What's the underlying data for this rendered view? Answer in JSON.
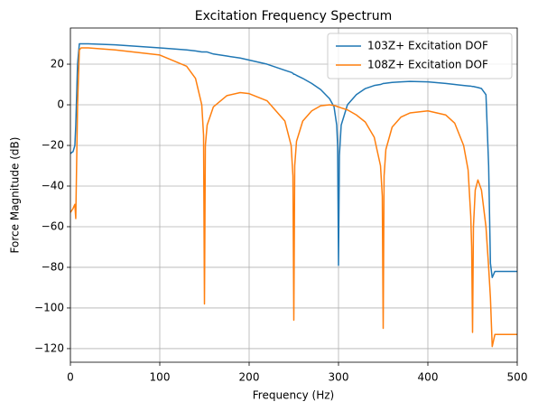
{
  "chart_data": {
    "type": "line",
    "title": "Excitation Frequency Spectrum",
    "x_label": "Frequency (Hz)",
    "y_label": "Force Magnitude (dB)",
    "x": [
      0,
      3,
      5,
      6,
      8,
      10,
      12,
      20,
      50,
      100,
      130,
      140,
      147,
      149,
      150,
      151,
      153,
      160,
      175,
      190,
      200,
      220,
      240,
      247,
      249,
      250,
      251,
      253,
      260,
      270,
      280,
      290,
      295,
      298,
      299,
      300,
      301,
      303,
      310,
      320,
      330,
      340,
      347,
      349,
      350,
      351,
      353,
      360,
      370,
      380,
      400,
      420,
      430,
      440,
      445,
      448,
      449,
      450,
      451,
      453,
      456,
      460,
      465,
      468,
      470,
      472,
      475,
      480,
      500
    ],
    "series": [
      {
        "name": "103Z+ Excitation DOF",
        "color": "#1f77b4",
        "values": [
          -24,
          -23,
          -20,
          -10,
          20,
          30,
          30,
          30,
          29.5,
          28,
          27,
          26.5,
          26,
          26,
          26,
          26,
          26,
          25,
          24,
          23,
          22,
          20,
          17,
          16,
          15.5,
          15,
          15,
          14.5,
          13,
          10.5,
          7.5,
          3,
          -1,
          -10,
          -20,
          -79,
          -25,
          -10,
          0,
          5,
          8,
          9.5,
          10,
          10.3,
          10.5,
          10.5,
          10.6,
          11,
          11.3,
          11.5,
          11.3,
          10.5,
          10,
          9.5,
          9.3,
          9.2,
          9.1,
          9,
          9,
          8.8,
          8.5,
          8,
          5,
          -30,
          -78,
          -85,
          -82,
          -82,
          -82
        ]
      },
      {
        "name": "108Z+ Excitation DOF",
        "color": "#ff7f0e",
        "values": [
          -53,
          -51,
          -49,
          -56,
          0,
          27,
          28,
          28,
          27,
          24.5,
          19,
          13,
          0,
          -15,
          -98,
          -20,
          -10,
          -1,
          4.5,
          6,
          5.5,
          2,
          -8,
          -20,
          -35,
          -106,
          -30,
          -18,
          -8,
          -3,
          -0.5,
          0,
          -0.3,
          -0.7,
          -1,
          -1,
          -1.2,
          -1.5,
          -2.5,
          -5,
          -8.5,
          -16,
          -30,
          -45,
          -110,
          -35,
          -22,
          -11,
          -6,
          -4,
          -3,
          -5,
          -9,
          -20,
          -32,
          -55,
          -70,
          -112,
          -60,
          -42,
          -37,
          -42,
          -60,
          -80,
          -95,
          -119,
          -113,
          -113,
          -113
        ]
      }
    ],
    "xlim": [
      0,
      500
    ],
    "xticks": [
      0,
      100,
      200,
      300,
      400,
      500
    ],
    "ylim": [
      -126.7,
      37.8
    ],
    "yticks": [
      {
        "value": -120,
        "label": "−120"
      },
      {
        "value": -100,
        "label": "−100"
      },
      {
        "value": -80,
        "label": "−80"
      },
      {
        "value": -60,
        "label": "−60"
      },
      {
        "value": -40,
        "label": "−40"
      },
      {
        "value": -20,
        "label": "−20"
      },
      0,
      20
    ],
    "grid": true,
    "legend": "upper right"
  }
}
